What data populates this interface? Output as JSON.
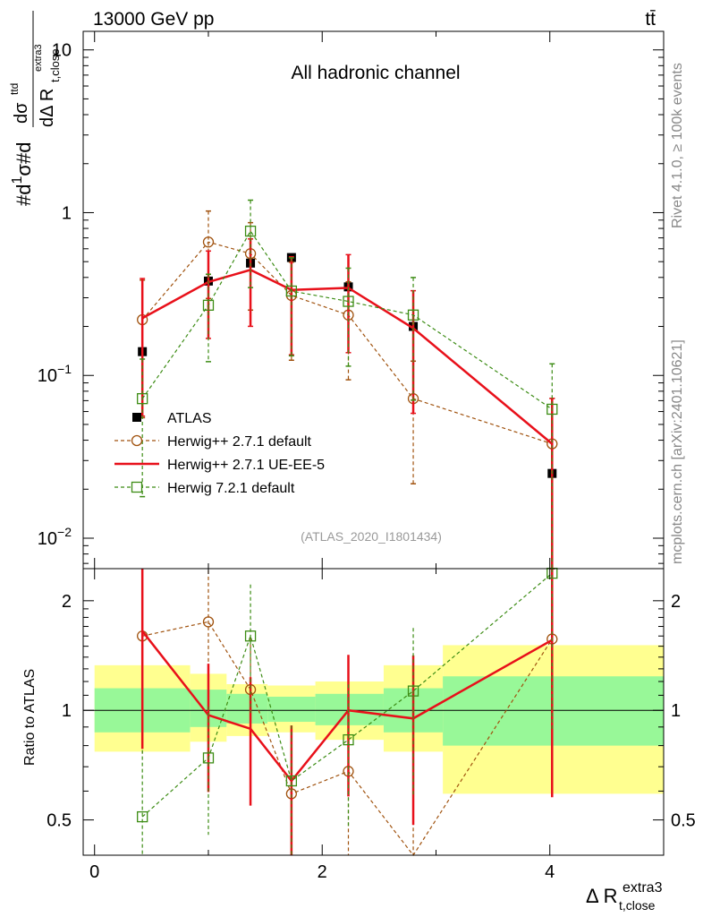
{
  "header": {
    "energy_label": "13000 GeV pp",
    "process_label": "tt̄",
    "channel_label": "All hadronic channel",
    "analysis_id": "(ATLAS_2020_I1801434)",
    "side_text_top": "Rivet 4.1.0, ≥ 100k events",
    "side_text_bottom": "mcplots.cern.ch [arXiv:2401.10621]"
  },
  "colors": {
    "data": "#000000",
    "herwigpp_default": "#a0520e",
    "herwigpp_ueee5": "#e8101a",
    "herwig721": "#3c8c14",
    "band_yellow": "#ffff90",
    "band_green": "#98f898"
  },
  "chart_data": {
    "type": "line",
    "title": "All hadronic channel",
    "xlabel_main": "Δ R",
    "xlabel_sub": "t,close",
    "xlabel_sup": "extra3",
    "ylabel_main": "1/σ dσ/dΔ R t,close extra3",
    "ylabel_ratio": "Ratio to ATLAS",
    "xlim": [
      -0.1,
      5.0
    ],
    "ylim_main": [
      0.0065,
      13
    ],
    "ylim_ratio": [
      0.4,
      2.45
    ],
    "y_scale": "log",
    "x_ticks": [
      "0",
      "2",
      "4"
    ],
    "y_ticks_main": [
      {
        "base": "10",
        "exp": "",
        "value": 10
      },
      {
        "base": "1",
        "exp": "",
        "value": 1
      },
      {
        "base": "10",
        "exp": "−1",
        "value": 0.1
      },
      {
        "base": "10",
        "exp": "−2",
        "value": 0.01
      }
    ],
    "y_ticks_ratio": [
      "2",
      "1",
      "0.5"
    ],
    "x": [
      0.42,
      1.0,
      1.37,
      1.73,
      2.23,
      2.8,
      4.02
    ],
    "bins": [
      [
        0.0,
        0.84
      ],
      [
        0.84,
        1.16
      ],
      [
        1.16,
        1.52
      ],
      [
        1.52,
        1.94
      ],
      [
        1.94,
        2.54
      ],
      [
        2.54,
        3.06
      ],
      [
        3.06,
        5.0
      ]
    ],
    "series": [
      {
        "name": "ATLAS",
        "style": "data",
        "values": [
          0.14,
          0.38,
          0.49,
          0.53,
          0.35,
          0.2,
          0.025
        ],
        "ratio": [
          1,
          1,
          1,
          1,
          1,
          1,
          1
        ]
      },
      {
        "name": "Herwig++ 2.7.1 default",
        "style": "circle-dashed",
        "values": [
          0.22,
          0.66,
          0.56,
          0.31,
          0.235,
          0.072,
          0.038
        ],
        "ratio": [
          1.6,
          1.75,
          1.14,
          0.59,
          0.68,
          0.36,
          1.57
        ]
      },
      {
        "name": "Herwig++ 2.7.1 UE-EE-5",
        "style": "solid",
        "values": [
          0.225,
          0.375,
          0.445,
          0.335,
          0.345,
          0.195,
          0.038
        ],
        "ratio": [
          1.65,
          0.97,
          0.89,
          0.64,
          1.0,
          0.95,
          1.56
        ]
      },
      {
        "name": "Herwig 7.2.1 default",
        "style": "square-dashed",
        "values": [
          0.072,
          0.27,
          0.77,
          0.33,
          0.285,
          0.235,
          0.062
        ],
        "ratio": [
          0.51,
          0.74,
          1.6,
          0.64,
          0.83,
          1.13,
          2.38
        ]
      }
    ],
    "uncertainty_bands": {
      "yellow": [
        [
          0.77,
          1.33
        ],
        [
          0.82,
          1.26
        ],
        [
          0.85,
          1.18
        ],
        [
          0.87,
          1.17
        ],
        [
          0.83,
          1.2
        ],
        [
          0.77,
          1.33
        ],
        [
          0.59,
          1.51
        ]
      ],
      "green": [
        [
          0.87,
          1.15
        ],
        [
          0.9,
          1.14
        ],
        [
          0.92,
          1.11
        ],
        [
          0.93,
          1.09
        ],
        [
          0.91,
          1.11
        ],
        [
          0.87,
          1.15
        ],
        [
          0.8,
          1.24
        ]
      ]
    },
    "legend_position": "center-left"
  }
}
